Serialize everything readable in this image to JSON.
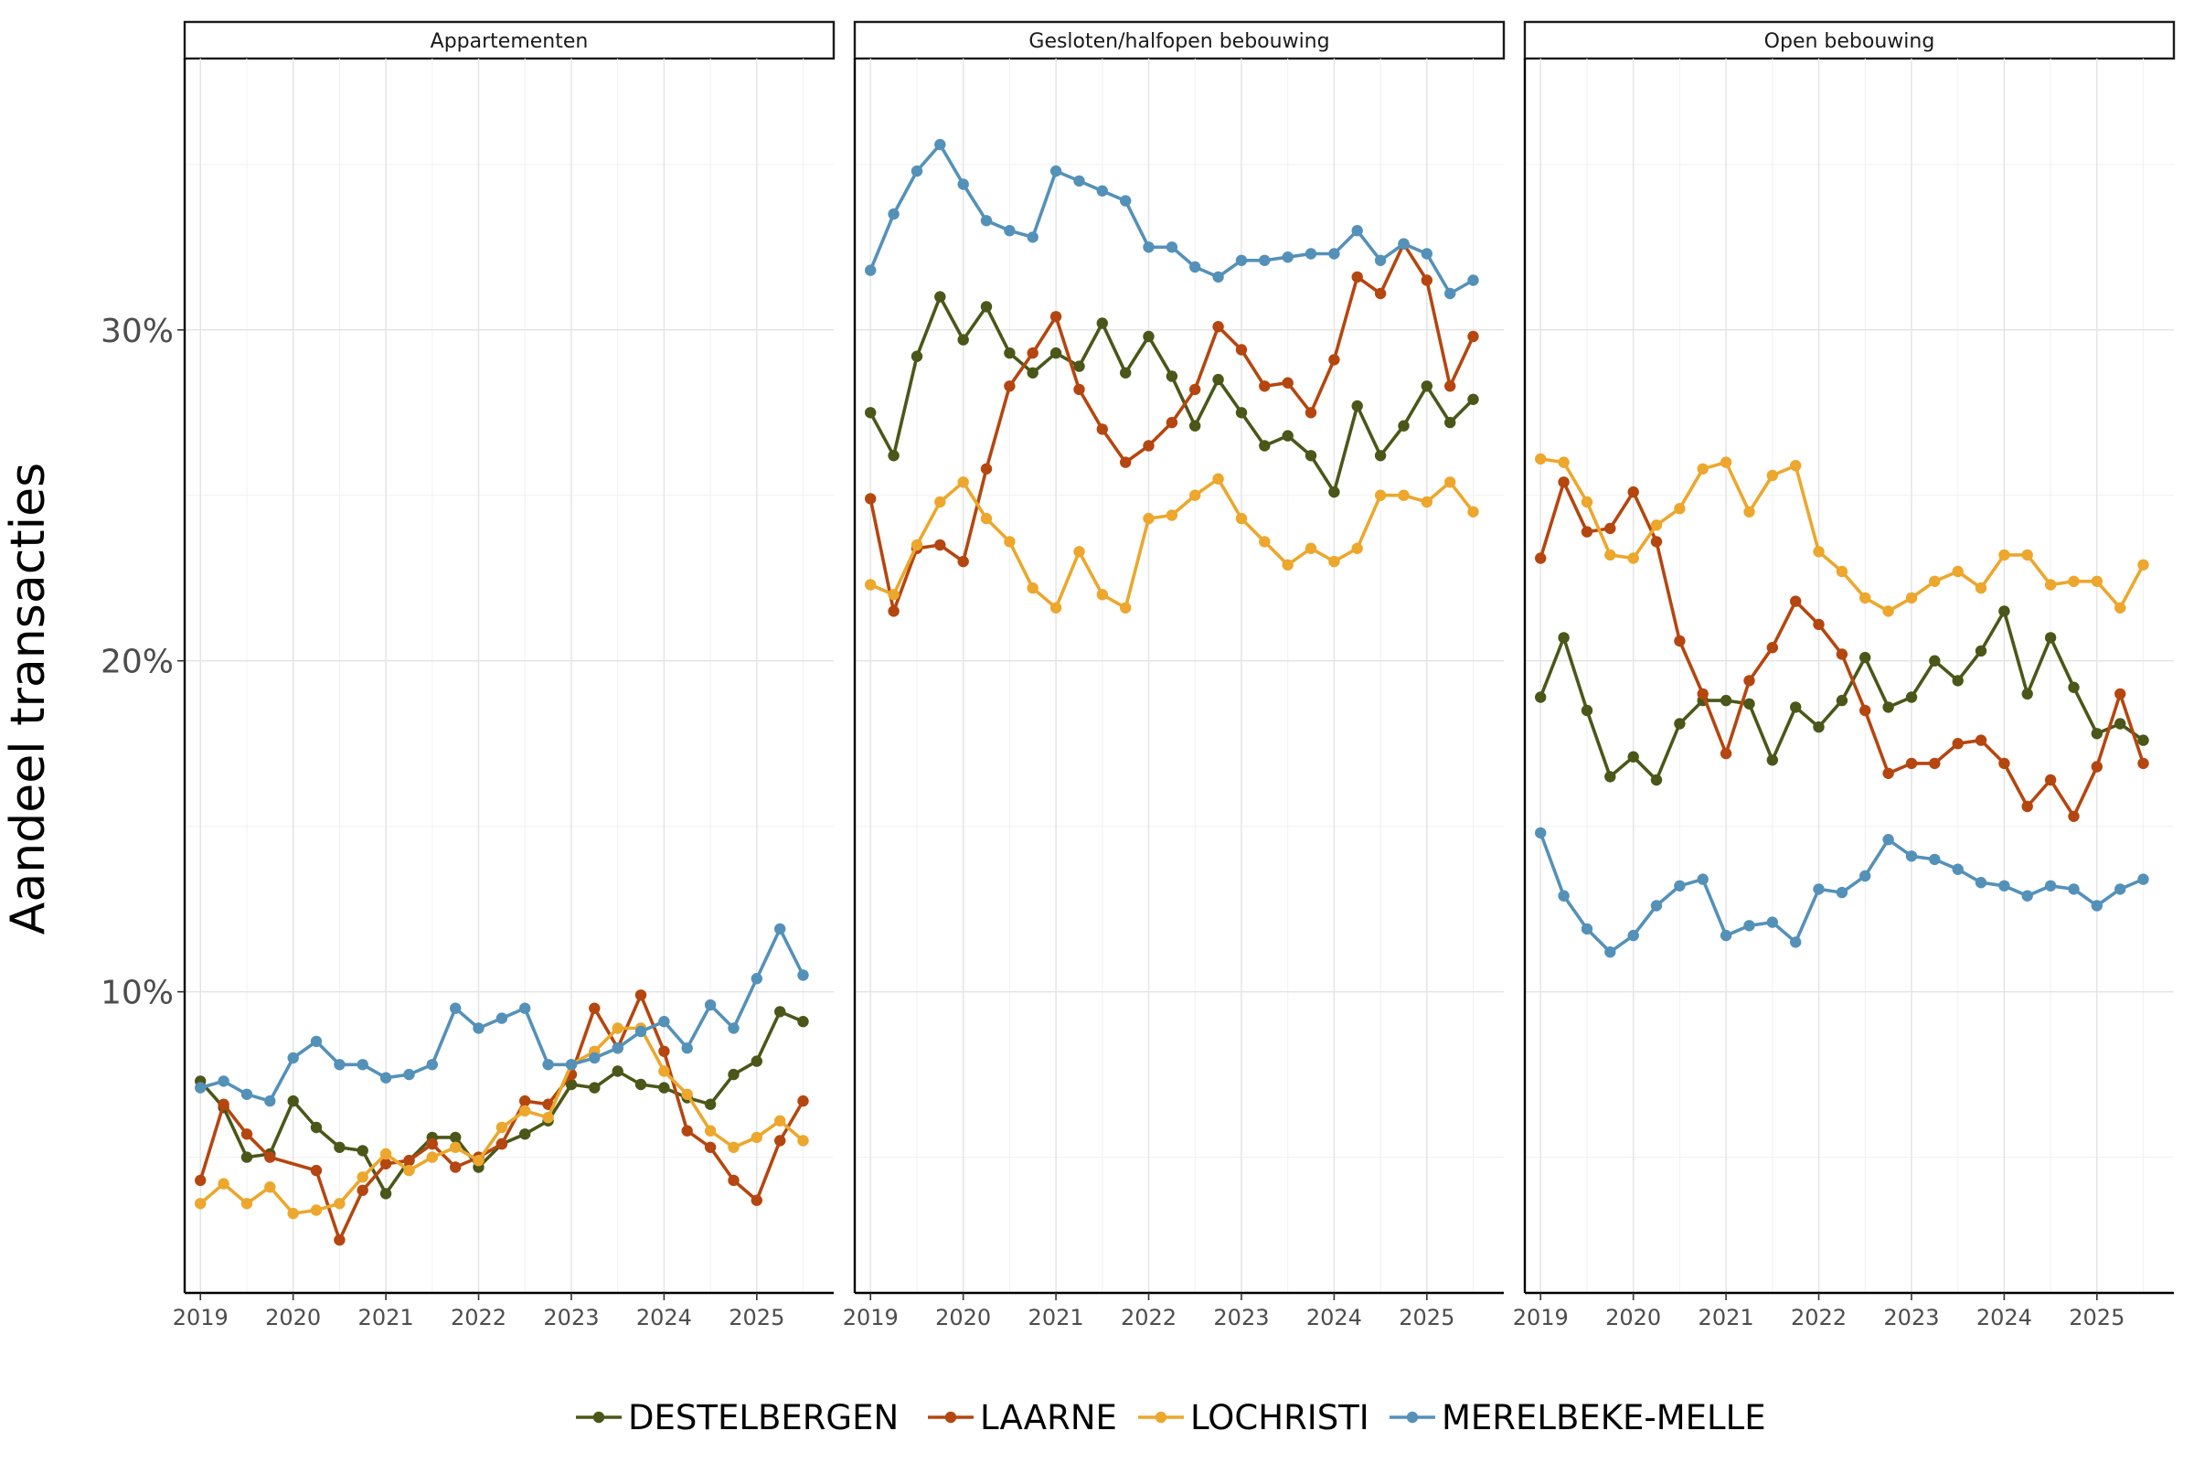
{
  "chart_data": {
    "type": "line",
    "ylabel": "Aandeel transacties",
    "xlabel": "",
    "ylim": [
      0.009,
      0.382
    ],
    "y_ticks": [
      0.1,
      0.2,
      0.3
    ],
    "y_tick_labels": [
      "10%",
      "20%",
      "30%"
    ],
    "x_range": [
      2018.83,
      2025.83
    ],
    "x_ticks": [
      2019,
      2020,
      2021,
      2022,
      2023,
      2024,
      2025
    ],
    "x_tick_labels": [
      "2019",
      "2020",
      "2021",
      "2022",
      "2023",
      "2024",
      "2025"
    ],
    "x": [
      2019.0,
      2019.25,
      2019.5,
      2019.75,
      2020.0,
      2020.25,
      2020.5,
      2020.75,
      2021.0,
      2021.25,
      2021.5,
      2021.75,
      2022.0,
      2022.25,
      2022.5,
      2022.75,
      2023.0,
      2023.25,
      2023.5,
      2023.75,
      2024.0,
      2024.25,
      2024.5,
      2024.75,
      2025.0,
      2025.25,
      2025.5
    ],
    "legend_position": "bottom",
    "series_meta": [
      {
        "name": "DESTELBERGEN",
        "color": "#4a5719"
      },
      {
        "name": "LAARNE",
        "color": "#b5460f"
      },
      {
        "name": "LOCHRISTI",
        "color": "#eca72c"
      },
      {
        "name": "MERELBEKE-MELLE",
        "color": "#5491b9"
      }
    ],
    "panels": [
      {
        "title": "Appartementen",
        "series": [
          {
            "name": "DESTELBERGEN",
            "values": [
              0.073,
              0.065,
              0.05,
              0.051,
              0.067,
              0.059,
              0.053,
              0.052,
              0.039,
              0.049,
              0.056,
              0.056,
              0.047,
              0.054,
              0.057,
              0.061,
              0.072,
              0.071,
              0.076,
              0.072,
              0.071,
              0.068,
              0.066,
              0.075,
              0.079,
              0.094,
              0.091
            ]
          },
          {
            "name": "LAARNE",
            "values": [
              0.043,
              0.066,
              0.057,
              0.05,
              null,
              0.046,
              0.025,
              0.04,
              0.048,
              0.049,
              0.054,
              0.047,
              0.05,
              0.054,
              0.067,
              0.066,
              0.075,
              0.095,
              0.083,
              0.099,
              0.082,
              0.058,
              0.053,
              0.043,
              0.037,
              0.055,
              0.067
            ]
          },
          {
            "name": "LOCHRISTI",
            "values": [
              0.036,
              0.042,
              0.036,
              0.041,
              0.033,
              0.034,
              0.036,
              0.044,
              0.051,
              0.046,
              0.05,
              0.053,
              0.049,
              0.059,
              0.064,
              0.062,
              0.078,
              0.082,
              0.089,
              0.089,
              0.076,
              0.069,
              0.058,
              0.053,
              0.056,
              0.061,
              0.055
            ]
          },
          {
            "name": "MERELBEKE-MELLE",
            "values": [
              0.071,
              0.073,
              0.069,
              0.067,
              0.08,
              0.085,
              0.078,
              0.078,
              0.074,
              0.075,
              0.078,
              0.095,
              0.089,
              0.092,
              0.095,
              0.078,
              0.078,
              0.08,
              0.083,
              0.088,
              0.091,
              0.083,
              0.096,
              0.089,
              0.104,
              0.119,
              0.105
            ]
          }
        ]
      },
      {
        "title": "Gesloten/halfopen bebouwing",
        "series": [
          {
            "name": "DESTELBERGEN",
            "values": [
              0.275,
              0.262,
              0.292,
              0.31,
              0.297,
              0.307,
              0.293,
              0.287,
              0.293,
              0.289,
              0.302,
              0.287,
              0.298,
              0.286,
              0.271,
              0.285,
              0.275,
              0.265,
              0.268,
              0.262,
              0.251,
              0.277,
              0.262,
              0.271,
              0.283,
              0.272,
              0.279
            ]
          },
          {
            "name": "LAARNE",
            "values": [
              0.249,
              0.215,
              0.234,
              0.235,
              0.23,
              0.258,
              0.283,
              0.293,
              0.304,
              0.282,
              0.27,
              0.26,
              0.265,
              0.272,
              0.282,
              0.301,
              0.294,
              0.283,
              0.284,
              0.275,
              0.291,
              0.316,
              0.311,
              0.326,
              0.315,
              0.283,
              0.298
            ]
          },
          {
            "name": "LOCHRISTI",
            "values": [
              0.223,
              0.22,
              0.235,
              0.248,
              0.254,
              0.243,
              0.236,
              0.222,
              0.216,
              0.233,
              0.22,
              0.216,
              0.243,
              0.244,
              0.25,
              0.255,
              0.243,
              0.236,
              0.229,
              0.234,
              0.23,
              0.234,
              0.25,
              0.25,
              0.248,
              0.254,
              0.245
            ]
          },
          {
            "name": "MERELBEKE-MELLE",
            "values": [
              0.318,
              0.335,
              0.348,
              0.356,
              0.344,
              0.333,
              0.33,
              0.328,
              0.348,
              0.345,
              0.342,
              0.339,
              0.325,
              0.325,
              0.319,
              0.316,
              0.321,
              0.321,
              0.322,
              0.323,
              0.323,
              0.33,
              0.321,
              0.326,
              0.323,
              0.311,
              0.315
            ]
          }
        ]
      },
      {
        "title": "Open bebouwing",
        "series": [
          {
            "name": "DESTELBERGEN",
            "values": [
              0.189,
              0.207,
              0.185,
              0.165,
              0.171,
              0.164,
              0.181,
              0.188,
              0.188,
              0.187,
              0.17,
              0.186,
              0.18,
              0.188,
              0.201,
              0.186,
              0.189,
              0.2,
              0.194,
              0.203,
              0.215,
              0.19,
              0.207,
              0.192,
              0.178,
              0.181,
              0.176
            ]
          },
          {
            "name": "LAARNE",
            "values": [
              0.231,
              0.254,
              0.239,
              0.24,
              0.251,
              0.236,
              0.206,
              0.19,
              0.172,
              0.194,
              0.204,
              0.218,
              0.211,
              0.202,
              0.185,
              0.166,
              0.169,
              0.169,
              0.175,
              0.176,
              0.169,
              0.156,
              0.164,
              0.153,
              0.168,
              0.19,
              0.169
            ]
          },
          {
            "name": "LOCHRISTI",
            "values": [
              0.261,
              0.26,
              0.248,
              0.232,
              0.231,
              0.241,
              0.246,
              0.258,
              0.26,
              0.245,
              0.256,
              0.259,
              0.233,
              0.227,
              0.219,
              0.215,
              0.219,
              0.224,
              0.227,
              0.222,
              0.232,
              0.232,
              0.223,
              0.224,
              0.224,
              0.216,
              0.229
            ]
          },
          {
            "name": "MERELBEKE-MELLE",
            "values": [
              0.148,
              0.129,
              0.119,
              0.112,
              0.117,
              0.126,
              0.132,
              0.134,
              0.117,
              0.12,
              0.121,
              0.115,
              0.131,
              0.13,
              0.135,
              0.146,
              0.141,
              0.14,
              0.137,
              0.133,
              0.132,
              0.129,
              0.132,
              0.131,
              0.126,
              0.131,
              0.134
            ]
          }
        ]
      }
    ]
  }
}
